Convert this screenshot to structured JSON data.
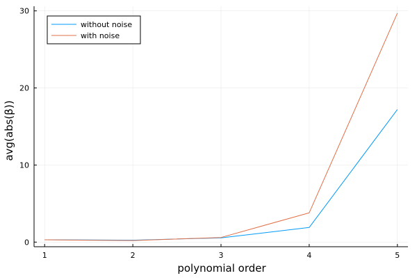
{
  "chart_data": {
    "type": "line",
    "title": "",
    "xlabel": "polynomial order",
    "ylabel": "avg(abs(β))",
    "x": [
      1,
      2,
      3,
      4,
      5
    ],
    "xticks": [
      1,
      2,
      3,
      4,
      5
    ],
    "yticks": [
      0,
      10,
      20,
      30
    ],
    "xlim": [
      0.88,
      5.12
    ],
    "ylim": [
      -0.6,
      30.6
    ],
    "grid": true,
    "legend_position": "top-left",
    "series": [
      {
        "name": "without noise",
        "color": "#009af9",
        "values": [
          0.3,
          0.25,
          0.55,
          1.9,
          17.2
        ]
      },
      {
        "name": "with noise",
        "color": "#e26f46",
        "values": [
          0.3,
          0.2,
          0.6,
          3.8,
          29.7
        ]
      }
    ]
  }
}
